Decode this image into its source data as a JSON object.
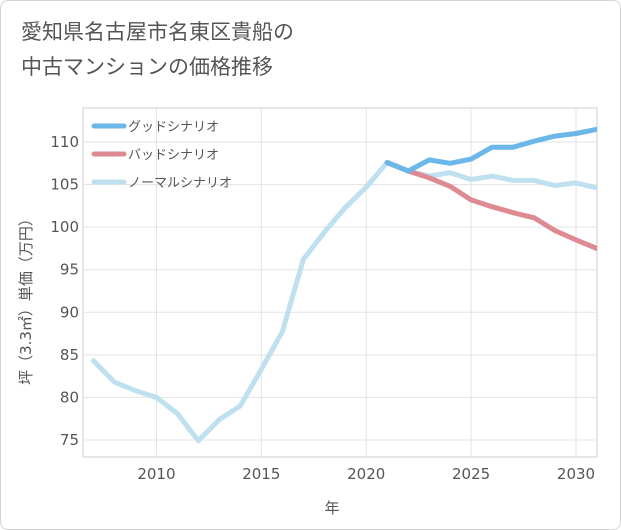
{
  "title_lines": [
    "愛知県名古屋市名東区貴船の",
    "中古マンションの価格推移"
  ],
  "chart_data": {
    "type": "line",
    "xlabel": "年",
    "ylabel": "坪（3.3㎡）単価（万円）",
    "xlim": [
      2006.5,
      2031
    ],
    "ylim": [
      73,
      114
    ],
    "x_ticks": [
      2010,
      2015,
      2020,
      2025,
      2030
    ],
    "y_ticks": [
      75,
      80,
      85,
      90,
      95,
      100,
      105,
      110
    ],
    "grid": true,
    "legend_position": "top-left",
    "series": [
      {
        "name": "グッドシナリオ",
        "color": "#6bb7ea",
        "x": [
          2021,
          2022,
          2023,
          2024,
          2025,
          2026,
          2027,
          2028,
          2029,
          2030,
          2031
        ],
        "y": [
          107.6,
          106.6,
          107.9,
          107.5,
          108.0,
          109.4,
          109.4,
          110.1,
          110.7,
          111.0,
          111.5
        ]
      },
      {
        "name": "バッドシナリオ",
        "color": "#de8a93",
        "x": [
          2021,
          2022,
          2023,
          2024,
          2025,
          2026,
          2027,
          2028,
          2029,
          2030,
          2031
        ],
        "y": [
          107.6,
          106.6,
          105.8,
          104.8,
          103.2,
          102.4,
          101.7,
          101.1,
          99.6,
          98.5,
          97.5
        ]
      },
      {
        "name": "ノーマルシナリオ",
        "color": "#bfe0ef",
        "x": [
          2007,
          2008,
          2009,
          2010,
          2011,
          2012,
          2013,
          2014,
          2015,
          2016,
          2017,
          2018,
          2019,
          2020,
          2021,
          2022,
          2023,
          2024,
          2025,
          2026,
          2027,
          2028,
          2029,
          2030,
          2031
        ],
        "y": [
          84.3,
          81.8,
          80.8,
          80.0,
          78.1,
          74.9,
          77.4,
          79.0,
          83.3,
          87.7,
          96.2,
          99.4,
          102.3,
          104.7,
          107.6,
          106.6,
          106.0,
          106.4,
          105.6,
          106.0,
          105.5,
          105.5,
          104.9,
          105.2,
          104.6
        ]
      }
    ]
  }
}
